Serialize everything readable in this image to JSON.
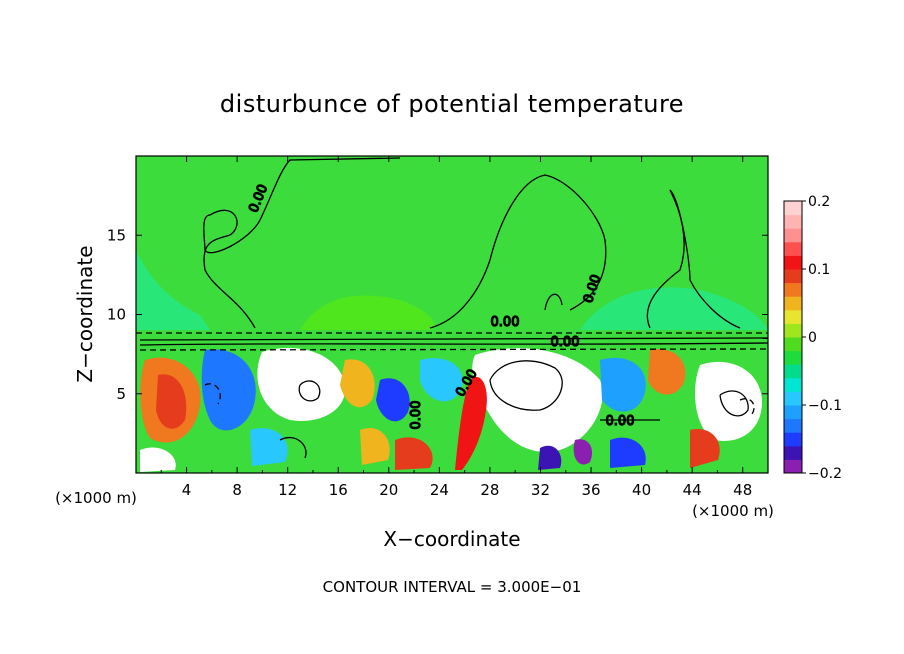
{
  "chart_data": {
    "type": "heatmap",
    "title": "disturbunce of potential temperature",
    "xlabel": "X−coordinate",
    "ylabel": "Z−coordinate",
    "x_unit": "(×1000 m)",
    "y_unit": "(×1000 m)",
    "xlim": [
      0,
      50
    ],
    "ylim": [
      0,
      20
    ],
    "x_ticks": [
      4,
      8,
      12,
      16,
      20,
      24,
      28,
      32,
      36,
      40,
      44,
      48
    ],
    "y_ticks": [
      5,
      10,
      15
    ],
    "colorbar": {
      "range": [
        -0.2,
        0.2
      ],
      "ticks": [
        "0.2",
        "0.1",
        "0",
        "−0.1",
        "−0.2"
      ],
      "tick_values": [
        0.2,
        0.1,
        0,
        -0.1,
        -0.2
      ],
      "colors": [
        "#8b1fb0",
        "#3c14b4",
        "#1e3cff",
        "#1e78ff",
        "#1ea0ff",
        "#28c8ff",
        "#00e6d2",
        "#00dc8c",
        "#1edc3c",
        "#50dc1e",
        "#a0e61e",
        "#e6e632",
        "#f0b41e",
        "#f0781e",
        "#e63c1e",
        "#f01414",
        "#ff5050",
        "#ff9090",
        "#ffb4b4",
        "#ffd2d2"
      ]
    },
    "contour_label": "0.00",
    "contour_interval_label": "CONTOUR INTERVAL = 3.000E−01"
  }
}
